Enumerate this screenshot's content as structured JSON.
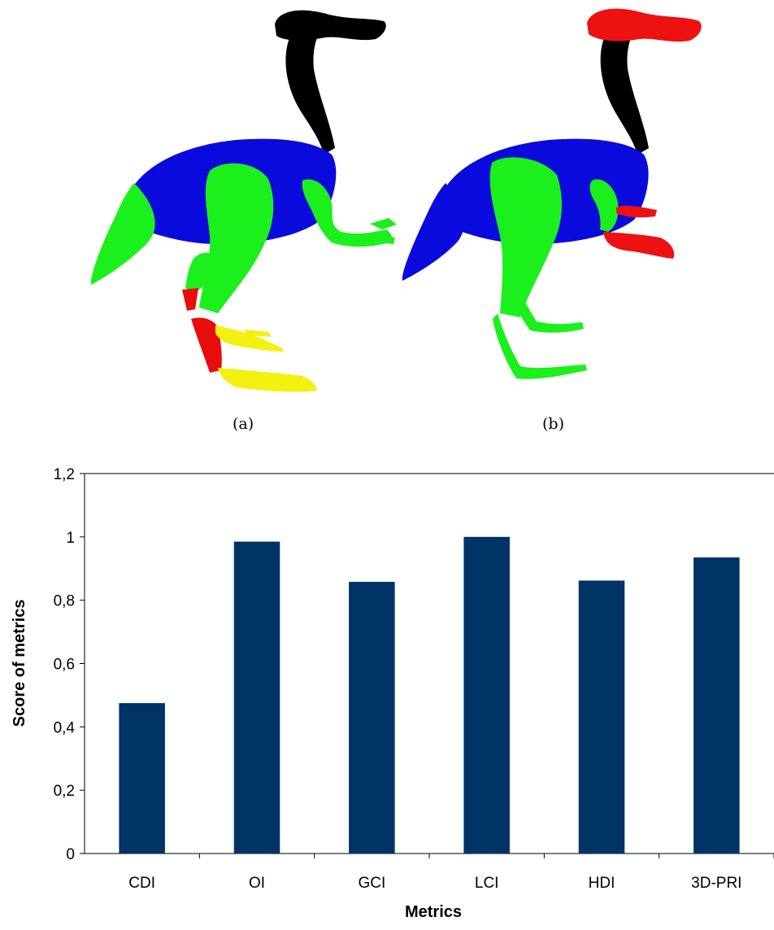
{
  "figure": {
    "captions": [
      "(a)",
      "(b)"
    ],
    "segment_colors": {
      "neck_head_a": "#000000",
      "body": "#0a0adc",
      "limbs": "#1cf01c",
      "lower_leg_a": "#e80c0c",
      "feet_a": "#f4f010",
      "head_arms_b": "#ee1111"
    }
  },
  "chart_data": {
    "type": "bar",
    "categories": [
      "CDI",
      "OI",
      "GCI",
      "LCI",
      "HDI",
      "3D-PRI"
    ],
    "values": [
      0.475,
      0.985,
      0.858,
      1.0,
      0.862,
      0.935
    ],
    "ylim": [
      0,
      1.2
    ],
    "yticks": [
      "0",
      "0,2",
      "0,4",
      "0,6",
      "0,8",
      "1",
      "1,2"
    ],
    "ylabel": "Score of metrics",
    "xlabel": "Metrics",
    "bar_color": "#003366",
    "grid": false,
    "legend": "none"
  }
}
